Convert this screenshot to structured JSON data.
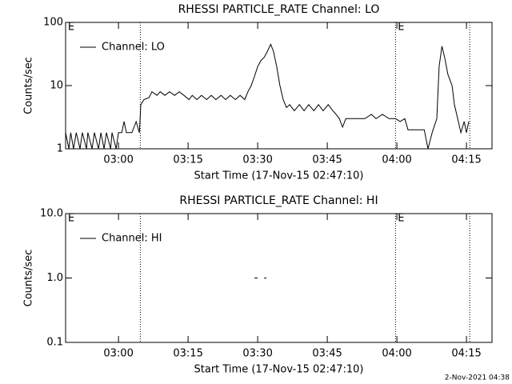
{
  "chart_data": [
    {
      "type": "line",
      "title": "RHESSI PARTICLE_RATE Channel: LO",
      "xlabel": "Start Time (17-Nov-15 02:47:10)",
      "ylabel": "Counts/sec",
      "log_y": true,
      "legend": "upper left",
      "xlim": [
        168.6,
        260.5
      ],
      "xticks": [
        {
          "value": 180,
          "label": "03:00"
        },
        {
          "value": 195,
          "label": "03:15"
        },
        {
          "value": 210,
          "label": "03:30"
        },
        {
          "value": 225,
          "label": "03:45"
        },
        {
          "value": 240,
          "label": "04:00"
        },
        {
          "value": 255,
          "label": "04:15"
        }
      ],
      "ylim": [
        1,
        100
      ],
      "yticks": [
        1,
        10,
        100
      ],
      "vlines": [
        184.7,
        239.7,
        255.7
      ],
      "annotations": [
        {
          "text": "E",
          "x": 169.1
        },
        {
          "text": "E",
          "x": 240.2
        }
      ],
      "series": [
        {
          "name": "Channel: LO",
          "color": "#000000",
          "x": [
            168.6,
            169.3,
            169.7,
            170.3,
            170.9,
            171.7,
            172.2,
            173.1,
            173.4,
            174.3,
            174.8,
            175.7,
            176.2,
            176.9,
            177.4,
            178.3,
            178.6,
            179.5,
            180,
            180.7,
            181.2,
            181.7,
            182.9,
            183.8,
            184.5,
            184.8,
            185.5,
            186.6,
            187.2,
            188.3,
            189,
            190,
            191,
            192.1,
            193.1,
            194.1,
            195.2,
            195.9,
            196.9,
            197.9,
            199,
            200,
            201,
            202.1,
            203.1,
            204.1,
            205.2,
            206.2,
            207.2,
            207.9,
            208.6,
            209.3,
            210,
            210.7,
            211.4,
            212.1,
            212.8,
            213.4,
            214.1,
            214.8,
            215.5,
            216.2,
            216.9,
            217.9,
            219,
            220,
            221,
            222.1,
            223.1,
            224.1,
            225.2,
            226.2,
            226.9,
            227.6,
            228.3,
            229,
            230.3,
            231.7,
            233.1,
            234.5,
            235.5,
            236.9,
            238.3,
            239.7,
            240.7,
            241.7,
            242.4,
            244.1,
            245.9,
            246.7,
            247.6,
            248.6,
            249.1,
            249.7,
            250.3,
            251,
            251.9,
            252.4,
            253.1,
            253.8,
            254.5,
            255,
            255.5
          ],
          "values": [
            1.8,
            1,
            1.8,
            1,
            1.8,
            1,
            1.8,
            1,
            1.8,
            1,
            1.8,
            1,
            1.8,
            1,
            1.8,
            1,
            1.8,
            1,
            1.8,
            1.8,
            2.7,
            1.8,
            1.8,
            2.7,
            1.8,
            5,
            6,
            6.5,
            8,
            7,
            8,
            7,
            8,
            7,
            8,
            7,
            6,
            7,
            6,
            7,
            6,
            7,
            6,
            7,
            6,
            7,
            6,
            7,
            6,
            8,
            10,
            14,
            20,
            25,
            28,
            35,
            45,
            35,
            20,
            10,
            6,
            4.5,
            5,
            4,
            5,
            4,
            5,
            4,
            5,
            4,
            5,
            4,
            3.5,
            3,
            2.2,
            3,
            3,
            3,
            3,
            3.5,
            3,
            3.5,
            3,
            3,
            2.7,
            3,
            2,
            2,
            2,
            1,
            1.8,
            3,
            20,
            42,
            28,
            15,
            10,
            5,
            3,
            1.8,
            2.7,
            1.8,
            2.7
          ]
        }
      ]
    },
    {
      "type": "line",
      "title": "RHESSI PARTICLE_RATE Channel: HI",
      "xlabel": "Start Time (17-Nov-15 02:47:10)",
      "ylabel": "Counts/sec",
      "log_y": true,
      "legend": "upper left",
      "xlim": [
        168.6,
        260.5
      ],
      "xticks": [
        {
          "value": 180,
          "label": "03:00"
        },
        {
          "value": 195,
          "label": "03:15"
        },
        {
          "value": 210,
          "label": "03:30"
        },
        {
          "value": 225,
          "label": "03:45"
        },
        {
          "value": 240,
          "label": "04:00"
        },
        {
          "value": 255,
          "label": "04:15"
        }
      ],
      "ylim": [
        0.1,
        10
      ],
      "yticks": [
        0.1,
        {
          "value": 1,
          "label": "1.0"
        },
        {
          "value": 10,
          "label": "10.0"
        }
      ],
      "vlines": [
        184.7,
        239.7,
        255.7
      ],
      "annotations": [
        {
          "text": "E",
          "x": 169.1
        },
        {
          "text": "E",
          "x": 240.2
        }
      ],
      "series": [
        {
          "name": "Channel: HI",
          "color": "#000000",
          "x": [
            209.3,
            210,
            210.4,
            211.4,
            211.9
          ],
          "values": [
            1,
            1,
            null,
            1,
            1
          ]
        }
      ]
    }
  ],
  "footer": "2-Nov-2021 04:38"
}
